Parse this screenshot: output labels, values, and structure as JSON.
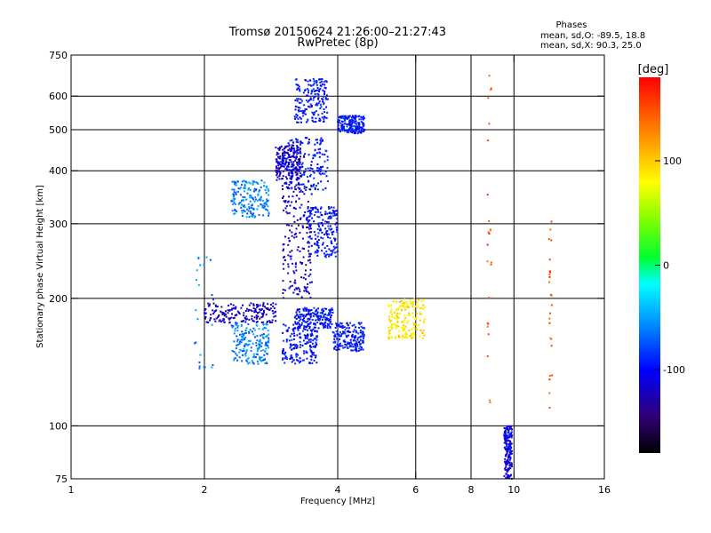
{
  "chart_data": {
    "type": "scatter",
    "title": "Tromsø 20150624 21:26:00–21:27:43",
    "subtitle": "RwPretec (8p)",
    "xlabel": "Frequency [MHz]",
    "ylabel": "Stationary phase Virtual Height [km]",
    "x_scale": "log",
    "y_scale": "log",
    "xlim": [
      1,
      16
    ],
    "ylim": [
      75,
      750
    ],
    "x_ticks": [
      1,
      2,
      4,
      6,
      8,
      10,
      16
    ],
    "y_ticks": [
      75,
      100,
      200,
      300,
      400,
      500,
      600,
      750
    ],
    "x_grid": [
      2,
      4,
      6,
      8,
      10
    ],
    "y_grid": [
      100,
      200,
      300,
      400,
      500,
      600
    ],
    "legend": {
      "title": "Phases",
      "lines": [
        "mean, sd,O: -89.5, 18.8",
        "mean, sd,X: 90.3, 25.0"
      ]
    },
    "colorbar": {
      "label": "[deg]",
      "range": [
        -180,
        180
      ],
      "ticks": [
        -100,
        0,
        100
      ]
    },
    "series": [
      {
        "color_deg": -95,
        "clusters": [
          {
            "f": [
              3.0,
              3.6
            ],
            "h": [
              140,
              175
            ]
          },
          {
            "f": [
              3.2,
              3.9
            ],
            "h": [
              170,
              190
            ]
          },
          {
            "f": [
              3.0,
              3.8
            ],
            "h": [
              360,
              480
            ]
          },
          {
            "f": [
              3.2,
              3.8
            ],
            "h": [
              520,
              660
            ]
          },
          {
            "f": [
              3.4,
              4.0
            ],
            "h": [
              250,
              330
            ]
          },
          {
            "f": [
              4.0,
              4.6
            ],
            "h": [
              490,
              540
            ]
          },
          {
            "f": [
              3.9,
              4.6
            ],
            "h": [
              150,
              175
            ]
          }
        ]
      },
      {
        "color_deg": -120,
        "clusters": [
          {
            "f": [
              2.0,
              2.9
            ],
            "h": [
              175,
              195
            ]
          },
          {
            "f": [
              3.0,
              3.5
            ],
            "h": [
              200,
              380
            ]
          },
          {
            "f": [
              2.9,
              3.3
            ],
            "h": [
              380,
              460
            ]
          }
        ]
      },
      {
        "color_deg": -60,
        "clusters": [
          {
            "f": [
              2.3,
              2.8
            ],
            "h": [
              310,
              380
            ]
          },
          {
            "f": [
              1.9,
              2.1
            ],
            "h": [
              135,
              260
            ]
          },
          {
            "f": [
              2.3,
              2.8
            ],
            "h": [
              140,
              175
            ]
          }
        ]
      },
      {
        "color_deg": 90,
        "clusters": [
          {
            "f": [
              5.2,
              6.3
            ],
            "h": [
              160,
              200
            ]
          }
        ]
      },
      {
        "color_deg": 150,
        "clusters": [
          {
            "f": [
              8.7,
              8.9
            ],
            "h": [
              110,
              700
            ]
          },
          {
            "f": [
              12.0,
              12.2
            ],
            "h": [
              110,
              320
            ]
          }
        ]
      },
      {
        "color_deg": -110,
        "clusters": [
          {
            "f": [
              9.5,
              9.9
            ],
            "h": [
              75,
              100
            ]
          }
        ]
      }
    ]
  }
}
